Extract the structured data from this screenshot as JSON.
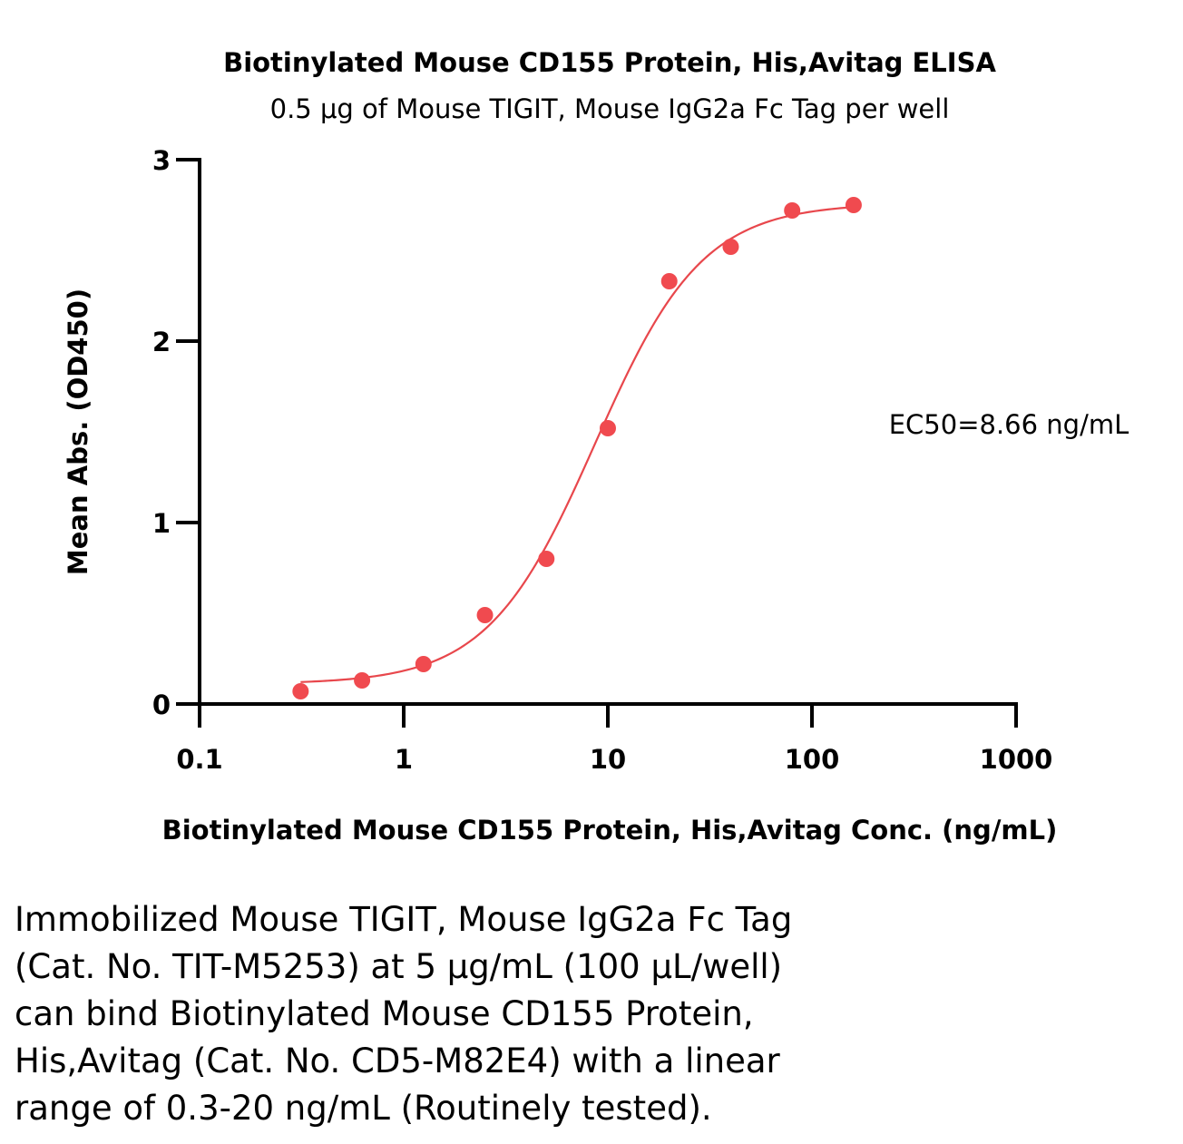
{
  "chart_data": {
    "type": "scatter",
    "title": "Biotinylated Mouse CD155 Protein, His,Avitag ELISA",
    "subtitle": "0.5 μg of Mouse TIGIT, Mouse IgG2a Fc Tag per well",
    "xlabel": "Biotinylated Mouse CD155 Protein, His,Avitag Conc. (ng/mL)",
    "ylabel": "Mean Abs. (OD450)",
    "x_scale": "log",
    "xlim": [
      0.1,
      1000
    ],
    "ylim": [
      0,
      3
    ],
    "x_ticks": [
      "0.1",
      "1",
      "10",
      "100",
      "1000"
    ],
    "y_ticks": [
      "0",
      "1",
      "2",
      "3"
    ],
    "grid": false,
    "marker_color": "#f04a4f",
    "curve_color": "#e8474c",
    "annotation": "EC50=8.66 ng/mL",
    "series": [
      {
        "x": [
          0.3125,
          0.625,
          1.25,
          2.5,
          5,
          10,
          20,
          40,
          80,
          160
        ],
        "y": [
          0.07,
          0.13,
          0.22,
          0.49,
          0.8,
          1.52,
          2.33,
          2.52,
          2.72,
          2.75
        ]
      }
    ],
    "fit": {
      "model": "4PL",
      "bottom": 0.11,
      "top": 2.76,
      "ec50": 8.66,
      "hill": 1.65,
      "x_range": [
        0.3125,
        160
      ]
    }
  },
  "caption": {
    "lines": [
      "Immobilized Mouse TIGIT, Mouse IgG2a Fc Tag",
      "(Cat. No. TIT-M5253) at 5 μg/mL (100 μL/well)",
      "can bind Biotinylated Mouse CD155 Protein,",
      "His,Avitag (Cat. No. CD5-M82E4) with a linear",
      "range of 0.3-20 ng/mL (Routinely tested)."
    ]
  }
}
